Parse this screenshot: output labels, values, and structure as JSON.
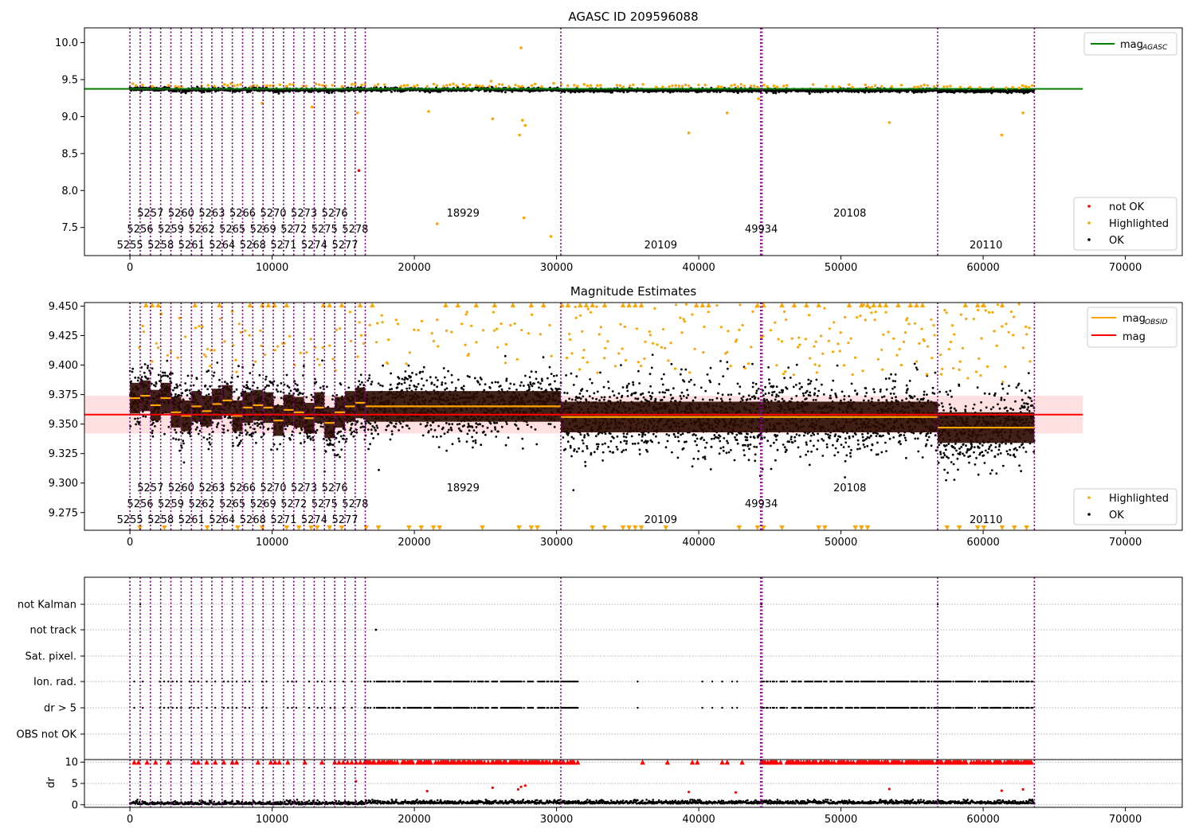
{
  "chart_data": [
    {
      "type": "scatter",
      "title": "AGASC ID 209596088",
      "xlabel": "",
      "ylabel": "",
      "xlim": [
        -3200,
        74000
      ],
      "ylim": [
        7.12,
        10.2
      ],
      "x_ticks": [
        0,
        10000,
        20000,
        30000,
        40000,
        50000,
        60000,
        70000
      ],
      "x_tick_labels": [
        "0",
        "10000",
        "20000",
        "30000",
        "40000",
        "50000",
        "60000",
        "70000"
      ],
      "y_ticks": [
        7.5,
        8.0,
        8.5,
        9.0,
        9.5,
        10.0
      ],
      "y_tick_labels": [
        "7.5",
        "8.0",
        "8.5",
        "9.0",
        "9.5",
        "10.0"
      ],
      "grid": false,
      "reference_line": {
        "name": "mag",
        "subscript": "AGASC",
        "y": 9.375,
        "x_range": [
          -3200,
          67000
        ],
        "color": "#008000"
      },
      "series": [
        {
          "name": "not OK",
          "color": "#ff0000",
          "points": [
            [
              16100,
              8.27
            ]
          ]
        },
        {
          "name": "Highlighted",
          "color": "#ffa500",
          "points": [
            [
              27500,
              9.93
            ],
            [
              27400,
              8.75
            ],
            [
              27600,
              8.95
            ],
            [
              27800,
              8.88
            ],
            [
              27700,
              7.63
            ],
            [
              21600,
              7.55
            ],
            [
              29600,
              7.38
            ],
            [
              39300,
              8.78
            ],
            [
              61300,
              8.75
            ],
            [
              62800,
              9.05
            ],
            [
              53400,
              8.92
            ],
            [
              44200,
              9.24
            ],
            [
              42000,
              9.05
            ],
            [
              21000,
              9.07
            ],
            [
              16000,
              9.05
            ],
            [
              25400,
              9.48
            ],
            [
              29800,
              9.45
            ],
            [
              12800,
              9.13
            ],
            [
              9300,
              9.18
            ],
            [
              25500,
              8.97
            ]
          ]
        },
        {
          "name": "OK",
          "color": "#000000",
          "points": []
        }
      ],
      "legend_top": [
        {
          "label": "mag",
          "subscript": "AGASC",
          "color": "#008000",
          "kind": "line"
        }
      ],
      "legend_bottom": [
        {
          "label": "not OK",
          "color": "#ff0000"
        },
        {
          "label": "Highlighted",
          "color": "#ffa500"
        },
        {
          "label": "OK",
          "color": "#000000"
        }
      ]
    },
    {
      "type": "scatter",
      "title": "Magnitude Estimates",
      "xlabel": "",
      "ylabel": "",
      "xlim": [
        -3200,
        74000
      ],
      "ylim": [
        9.26,
        9.453
      ],
      "x_ticks": [
        0,
        10000,
        20000,
        30000,
        40000,
        50000,
        60000,
        70000
      ],
      "x_tick_labels": [
        "0",
        "10000",
        "20000",
        "30000",
        "40000",
        "50000",
        "60000",
        "70000"
      ],
      "y_ticks": [
        9.275,
        9.3,
        9.325,
        9.35,
        9.375,
        9.4,
        9.425,
        9.45
      ],
      "y_tick_labels": [
        "9.275",
        "9.300",
        "9.325",
        "9.350",
        "9.375",
        "9.400",
        "9.425",
        "9.450"
      ],
      "grid": false,
      "mag": {
        "name": "mag",
        "y": 9.358,
        "band": [
          9.342,
          9.374
        ],
        "x_range": [
          -3200,
          67000
        ],
        "color": "#ff0000"
      },
      "mag_obsid": {
        "name": "mag",
        "subscript": "OBSID",
        "color": "#ffa500",
        "segments": [
          [
            0,
            720,
            9.372
          ],
          [
            720,
            1440,
            9.374
          ],
          [
            1440,
            2160,
            9.366
          ],
          [
            2160,
            2880,
            9.372
          ],
          [
            2880,
            3600,
            9.36
          ],
          [
            3600,
            4320,
            9.357
          ],
          [
            4320,
            5040,
            9.365
          ],
          [
            5040,
            5760,
            9.361
          ],
          [
            5760,
            6480,
            9.367
          ],
          [
            6480,
            7200,
            9.37
          ],
          [
            7200,
            7920,
            9.357
          ],
          [
            7920,
            8640,
            9.364
          ],
          [
            8640,
            9360,
            9.366
          ],
          [
            9360,
            10080,
            9.364
          ],
          [
            10080,
            10800,
            9.353
          ],
          [
            10800,
            11520,
            9.362
          ],
          [
            11520,
            12240,
            9.36
          ],
          [
            12240,
            12960,
            9.355
          ],
          [
            12960,
            13680,
            9.364
          ],
          [
            13680,
            14400,
            9.351
          ],
          [
            14400,
            15120,
            9.36
          ],
          [
            15120,
            15840,
            9.365
          ],
          [
            15840,
            16550,
            9.368
          ],
          [
            16550,
            30300,
            9.365
          ],
          [
            30300,
            44400,
            9.356
          ],
          [
            44400,
            56800,
            9.356
          ],
          [
            56800,
            63600,
            9.347
          ]
        ]
      },
      "series": [
        {
          "name": "Highlighted",
          "color": "#ffa500"
        },
        {
          "name": "OK",
          "color": "#000000"
        }
      ],
      "legend_top": [
        {
          "label": "mag",
          "subscript": "OBSID",
          "color": "#ffa500",
          "kind": "line"
        },
        {
          "label": "mag",
          "color": "#ff0000",
          "kind": "line"
        }
      ],
      "legend_bottom": [
        {
          "label": "Highlighted",
          "color": "#ffa500"
        },
        {
          "label": "OK",
          "color": "#000000"
        }
      ]
    },
    {
      "type": "scatter",
      "title": "",
      "xlabel": "",
      "ylabel": "",
      "xlim": [
        -3200,
        74000
      ],
      "x_ticks": [
        0,
        10000,
        20000,
        30000,
        40000,
        50000,
        60000,
        70000
      ],
      "x_tick_labels": [
        "0",
        "10000",
        "20000",
        "30000",
        "40000",
        "50000",
        "60000",
        "70000"
      ],
      "flag_rows": [
        "not Kalman",
        "not track",
        "Sat. pixel.",
        "Ion. rad.",
        "dr > 5",
        "OBS not OK"
      ],
      "grid": true
    },
    {
      "type": "scatter",
      "title": "",
      "xlabel": "",
      "ylabel": "dr",
      "xlim": [
        -3200,
        74000
      ],
      "ylim": [
        -0.6,
        10.6
      ],
      "x_ticks": [
        0,
        10000,
        20000,
        30000,
        40000,
        50000,
        60000,
        70000
      ],
      "x_tick_labels": [
        "0",
        "10000",
        "20000",
        "30000",
        "40000",
        "50000",
        "60000",
        "70000"
      ],
      "y_ticks": [
        0,
        5,
        10
      ],
      "y_tick_labels": [
        "0",
        "5",
        "10"
      ],
      "grid": true
    }
  ],
  "observations": {
    "boundaries": [
      0,
      720,
      1440,
      2160,
      2880,
      3600,
      4320,
      5040,
      5760,
      6480,
      7200,
      7920,
      8640,
      9360,
      10080,
      10800,
      11520,
      12240,
      12960,
      13680,
      14400,
      15120,
      15840,
      16550,
      30300,
      44350,
      44450,
      56800,
      63600
    ],
    "line_color": "#800080",
    "labels": [
      {
        "text": "5255",
        "x": 0,
        "row": 0
      },
      {
        "text": "5256",
        "x": 720,
        "row": 1
      },
      {
        "text": "5257",
        "x": 1440,
        "row": 2
      },
      {
        "text": "5258",
        "x": 2160,
        "row": 0
      },
      {
        "text": "5259",
        "x": 2880,
        "row": 1
      },
      {
        "text": "5260",
        "x": 3600,
        "row": 2
      },
      {
        "text": "5261",
        "x": 4320,
        "row": 0
      },
      {
        "text": "5262",
        "x": 5040,
        "row": 1
      },
      {
        "text": "5263",
        "x": 5760,
        "row": 2
      },
      {
        "text": "5264",
        "x": 6480,
        "row": 0
      },
      {
        "text": "5265",
        "x": 7200,
        "row": 1
      },
      {
        "text": "5266",
        "x": 7920,
        "row": 2
      },
      {
        "text": "5268",
        "x": 8640,
        "row": 0
      },
      {
        "text": "5269",
        "x": 9360,
        "row": 1
      },
      {
        "text": "5270",
        "x": 10080,
        "row": 2
      },
      {
        "text": "5271",
        "x": 10800,
        "row": 0
      },
      {
        "text": "5272",
        "x": 11520,
        "row": 1
      },
      {
        "text": "5273",
        "x": 12240,
        "row": 2
      },
      {
        "text": "5274",
        "x": 12960,
        "row": 0
      },
      {
        "text": "5275",
        "x": 13680,
        "row": 1
      },
      {
        "text": "5276",
        "x": 14400,
        "row": 2
      },
      {
        "text": "5277",
        "x": 15120,
        "row": 0
      },
      {
        "text": "5278",
        "x": 15840,
        "row": 1
      },
      {
        "text": "18929",
        "x": 16550,
        "x_end": 30300,
        "row": 2
      },
      {
        "text": "20109",
        "x": 30300,
        "x_end": 44350,
        "row": 0
      },
      {
        "text": "49934",
        "x": 44350,
        "x_end": 44450,
        "row": 1
      },
      {
        "text": "20108",
        "x": 44450,
        "x_end": 56800,
        "row": 2
      },
      {
        "text": "20110",
        "x": 56800,
        "x_end": 63600,
        "row": 0
      }
    ]
  }
}
